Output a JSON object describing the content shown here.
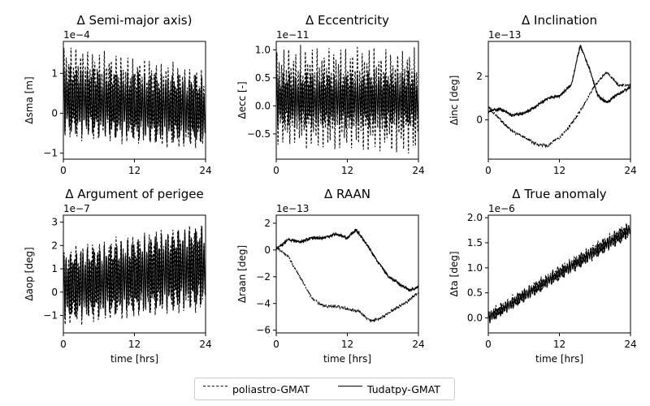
{
  "chart_data": [
    {
      "type": "line",
      "title": "Δ Semi-major axis)",
      "xlabel": "",
      "ylabel": "Δsma [m]",
      "exponent_label": "1e−4",
      "xlim": [
        0,
        24
      ],
      "ylim": [
        -1.15,
        1.8
      ],
      "xticks": [
        "0",
        "12",
        "24"
      ],
      "yticks": [
        {
          "value": 1,
          "label": "1"
        },
        {
          "value": 0,
          "label": "0"
        },
        {
          "value": -1,
          "label": "−1"
        }
      ],
      "series": [
        {
          "name": "poliastro-GMAT",
          "style": "dashed",
          "pattern": "oscillation",
          "envelope_x": [
            0,
            24
          ],
          "envelope_upper": [
            1.7,
            1.1
          ],
          "envelope_lower": [
            -0.6,
            -0.95
          ],
          "center": [
            0.55,
            0.1
          ]
        },
        {
          "name": "Tudatpy-GMAT",
          "style": "solid",
          "pattern": "oscillation",
          "envelope_x": [
            0,
            24
          ],
          "envelope_upper": [
            1.2,
            0.9
          ],
          "envelope_lower": [
            -0.5,
            -0.8
          ],
          "center": [
            0.35,
            0.05
          ]
        }
      ]
    },
    {
      "type": "line",
      "title": "Δ Eccentricity",
      "xlabel": "",
      "ylabel": "Δecc [-]",
      "exponent_label": "1e−11",
      "xlim": [
        0,
        24
      ],
      "ylim": [
        -0.95,
        1.15
      ],
      "xticks": [
        "0",
        "12",
        "24"
      ],
      "yticks": [
        {
          "value": 1.0,
          "label": "1.0"
        },
        {
          "value": 0.5,
          "label": "0.5"
        },
        {
          "value": 0.0,
          "label": "0.0"
        },
        {
          "value": -0.5,
          "label": "−0.5"
        }
      ],
      "series": [
        {
          "name": "poliastro-GMAT",
          "style": "dashed",
          "pattern": "oscillation",
          "envelope_x": [
            0,
            24
          ],
          "envelope_upper": [
            1.05,
            1.0
          ],
          "envelope_lower": [
            -0.7,
            -0.85
          ],
          "center": [
            0.1,
            0.1
          ]
        },
        {
          "name": "Tudatpy-GMAT",
          "style": "solid",
          "pattern": "oscillation",
          "envelope_x": [
            0,
            24
          ],
          "envelope_upper": [
            0.6,
            0.6
          ],
          "envelope_lower": [
            -0.35,
            -0.4
          ],
          "center": [
            0.1,
            0.1
          ]
        }
      ]
    },
    {
      "type": "line",
      "title": "Δ Inclination",
      "xlabel": "",
      "ylabel": "Δinc [deg]",
      "exponent_label": "1e−13",
      "xlim": [
        0,
        24
      ],
      "ylim": [
        -1.8,
        3.6
      ],
      "xticks": [
        "0",
        "12",
        "24"
      ],
      "yticks": [
        {
          "value": 2,
          "label": "2"
        },
        {
          "value": 0,
          "label": "0"
        }
      ],
      "series": [
        {
          "name": "poliastro-GMAT",
          "style": "dashed",
          "pattern": "walk",
          "x": [
            0,
            2,
            4,
            6,
            8,
            10,
            12,
            14,
            16,
            18,
            20,
            22,
            24
          ],
          "y": [
            0.6,
            0.0,
            -0.5,
            -0.8,
            -1.1,
            -1.2,
            -0.8,
            -0.2,
            0.6,
            1.6,
            2.2,
            1.6,
            1.6
          ]
        },
        {
          "name": "Tudatpy-GMAT",
          "style": "solid",
          "pattern": "walk",
          "x": [
            0,
            2,
            4,
            6,
            8,
            10,
            12,
            14,
            15.5,
            17,
            18.5,
            20,
            22,
            24
          ],
          "y": [
            0.4,
            0.5,
            0.2,
            0.3,
            0.6,
            1.0,
            1.1,
            1.6,
            3.4,
            2.4,
            1.1,
            0.8,
            1.2,
            1.5
          ]
        }
      ]
    },
    {
      "type": "line",
      "title": "Δ Argument of perigee",
      "xlabel": "time [hrs]",
      "ylabel": "Δaop [deg]",
      "exponent_label": "1e−7",
      "xlim": [
        0,
        24
      ],
      "ylim": [
        -1.75,
        3.3
      ],
      "xticks": [
        "0",
        "12",
        "24"
      ],
      "yticks": [
        {
          "value": 3,
          "label": "3"
        },
        {
          "value": 2,
          "label": "2"
        },
        {
          "value": 1,
          "label": "1"
        },
        {
          "value": 0,
          "label": "0"
        },
        {
          "value": -1,
          "label": "−1"
        }
      ],
      "series": [
        {
          "name": "poliastro-GMAT",
          "style": "dashed",
          "pattern": "oscillation",
          "envelope_x": [
            0,
            24
          ],
          "envelope_upper": [
            1.9,
            3.0
          ],
          "envelope_lower": [
            -1.4,
            -0.8
          ],
          "center": [
            0.2,
            1.1
          ]
        },
        {
          "name": "Tudatpy-GMAT",
          "style": "solid",
          "pattern": "oscillation",
          "envelope_x": [
            0,
            24
          ],
          "envelope_upper": [
            1.7,
            2.9
          ],
          "envelope_lower": [
            -1.2,
            -0.6
          ],
          "center": [
            0.2,
            1.1
          ]
        }
      ]
    },
    {
      "type": "line",
      "title": "Δ RAAN",
      "xlabel": "time [hrs]",
      "ylabel": "Δraan [deg]",
      "exponent_label": "1e−13",
      "xlim": [
        0,
        24
      ],
      "ylim": [
        -6.2,
        2.6
      ],
      "xticks": [
        "0",
        "12",
        "24"
      ],
      "yticks": [
        {
          "value": 2,
          "label": "2"
        },
        {
          "value": 0,
          "label": "0"
        },
        {
          "value": -2,
          "label": "−2"
        },
        {
          "value": -4,
          "label": "−4"
        },
        {
          "value": -6,
          "label": "−6"
        }
      ],
      "series": [
        {
          "name": "poliastro-GMAT",
          "style": "dashed",
          "pattern": "walk",
          "x": [
            0,
            2,
            4,
            6,
            8,
            10,
            12,
            14,
            16,
            18,
            20,
            22,
            24
          ],
          "y": [
            0.2,
            -0.5,
            -2.0,
            -3.6,
            -4.2,
            -4.2,
            -4.4,
            -4.6,
            -5.3,
            -5.0,
            -4.4,
            -3.9,
            -3.2
          ]
        },
        {
          "name": "Tudatpy-GMAT",
          "style": "solid",
          "pattern": "walk",
          "x": [
            0,
            2,
            4,
            6,
            8,
            10,
            12,
            13.5,
            15,
            17,
            19,
            21,
            22.5,
            24
          ],
          "y": [
            0.0,
            0.8,
            0.6,
            0.9,
            0.9,
            1.2,
            0.9,
            1.5,
            0.6,
            -0.8,
            -2.0,
            -2.6,
            -3.0,
            -2.8
          ]
        }
      ]
    },
    {
      "type": "line",
      "title": "Δ True anomaly",
      "xlabel": "time [hrs]",
      "ylabel": "Δta [deg]",
      "exponent_label": "1e−6",
      "xlim": [
        0,
        24
      ],
      "ylim": [
        -0.3,
        2.05
      ],
      "xticks": [
        "0",
        "12",
        "24"
      ],
      "yticks": [
        {
          "value": 2.0,
          "label": "2.0"
        },
        {
          "value": 1.5,
          "label": "1.5"
        },
        {
          "value": 1.0,
          "label": "1.0"
        },
        {
          "value": 0.5,
          "label": "0.5"
        },
        {
          "value": 0.0,
          "label": "0.0"
        }
      ],
      "series": [
        {
          "name": "poliastro-GMAT",
          "style": "dashed",
          "pattern": "oscillation",
          "envelope_x": [
            0,
            24
          ],
          "envelope_upper": [
            0.15,
            1.95
          ],
          "envelope_lower": [
            -0.1,
            1.6
          ],
          "center": [
            0.0,
            1.8
          ]
        },
        {
          "name": "Tudatpy-GMAT",
          "style": "solid",
          "pattern": "oscillation",
          "envelope_x": [
            0,
            24
          ],
          "envelope_upper": [
            0.1,
            1.9
          ],
          "envelope_lower": [
            -0.12,
            1.62
          ],
          "center": [
            0.0,
            1.78
          ]
        }
      ]
    }
  ],
  "legend": {
    "placement": "bottom-center",
    "items": [
      {
        "label": "poliastro-GMAT",
        "style": "dashed"
      },
      {
        "label": "Tudatpy-GMAT",
        "style": "solid"
      }
    ]
  },
  "colors": {
    "line": "#000000",
    "axes": "#000000",
    "legend_border": "#cccccc"
  }
}
